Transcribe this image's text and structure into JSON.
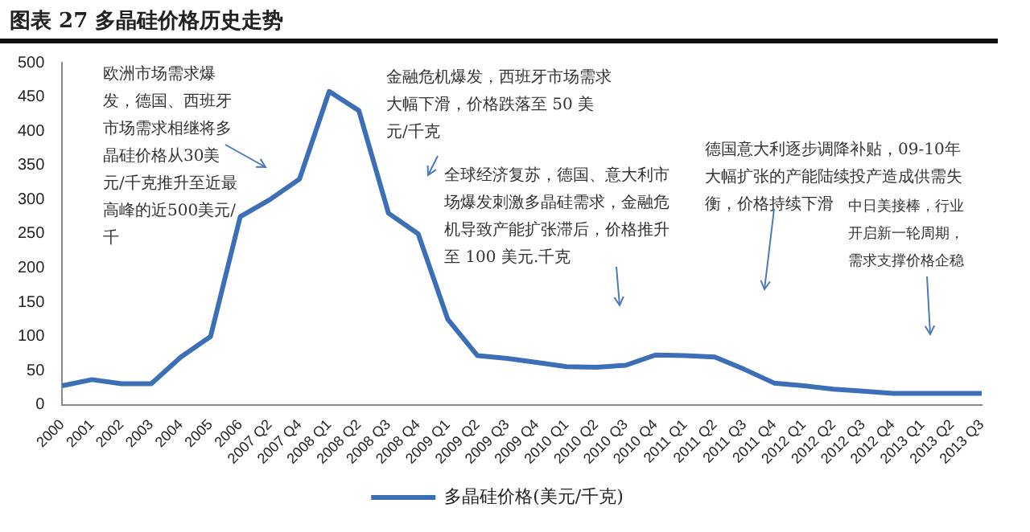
{
  "chart_data": {
    "type": "line",
    "title": "图表 27 多晶硅价格历史走势",
    "categories": [
      "2000",
      "2001",
      "2002",
      "2003",
      "2004",
      "2005",
      "2006",
      "2007 Q2",
      "2007 Q4",
      "2008 Q1",
      "2008 Q2",
      "2008 Q3",
      "2008 Q4",
      "2009 Q1",
      "2009 Q2",
      "2009 Q3",
      "2009 Q4",
      "2010 Q1",
      "2010 Q2",
      "2010 Q3",
      "2010 Q4",
      "2011 Q1",
      "2011 Q2",
      "2011 Q3",
      "2011 Q4",
      "2012 Q1",
      "2012 Q2",
      "2012 Q3",
      "2012 Q4",
      "2013 Q1",
      "2013 Q2",
      "2013 Q3"
    ],
    "series": [
      {
        "name": "多晶硅价格(美元/千克)",
        "color": "#3d6fb6",
        "values": [
          28,
          37,
          31,
          31,
          70,
          100,
          275,
          300,
          330,
          458,
          430,
          280,
          250,
          125,
          72,
          68,
          62,
          56,
          55,
          58,
          73,
          72,
          70,
          52,
          32,
          28,
          23,
          20,
          17,
          17,
          17,
          17
        ]
      }
    ],
    "ylim": [
      0,
      500
    ],
    "yticks": [
      0,
      50,
      100,
      150,
      200,
      250,
      300,
      350,
      400,
      450,
      500
    ],
    "grid": false,
    "legend": "bottom",
    "marker": "none",
    "line_style": "solid",
    "annotations": [
      "欧洲市场需求爆发，德国、西班牙市场需求相继将多晶硅价格从30美元/千克推升至近最高峰的近500美元/千",
      "金融危机爆发，西班牙市场需求大幅下滑，价格跌落至 50 美元/千克",
      "全球经济复苏，德国、意大利市场爆发刺激多晶硅需求，金融危机导致产能扩张滞后，价格推升至 100 美元.千克",
      "德国意大利逐步调降补贴，09-10年大幅扩张的产能陆续投产造成供需失衡，价格持续下滑",
      "中日美接棒，行业开启新一轮周期，需求支撑价格企稳"
    ]
  }
}
